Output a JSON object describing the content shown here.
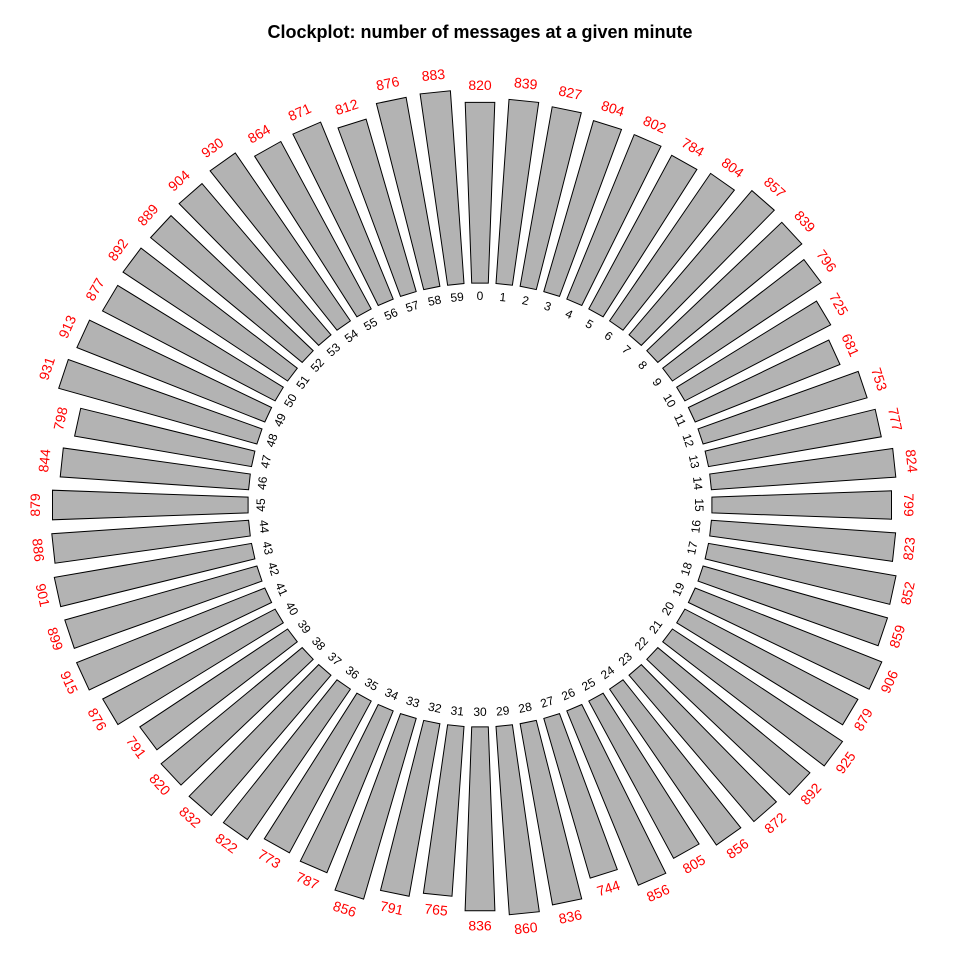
{
  "chart_data": {
    "type": "bar",
    "subtype": "clock-polar",
    "title": "Clockplot: number of messages at a given minute",
    "categories": [
      "0",
      "1",
      "2",
      "3",
      "4",
      "5",
      "6",
      "7",
      "8",
      "9",
      "10",
      "11",
      "12",
      "13",
      "14",
      "15",
      "16",
      "17",
      "18",
      "19",
      "20",
      "21",
      "22",
      "23",
      "24",
      "25",
      "26",
      "27",
      "28",
      "29",
      "30",
      "31",
      "32",
      "33",
      "34",
      "35",
      "36",
      "37",
      "38",
      "39",
      "40",
      "41",
      "42",
      "43",
      "44",
      "45",
      "46",
      "47",
      "48",
      "49",
      "50",
      "51",
      "52",
      "53",
      "54",
      "55",
      "56",
      "57",
      "58",
      "59"
    ],
    "values": [
      820,
      839,
      827,
      804,
      802,
      784,
      804,
      857,
      839,
      796,
      725,
      681,
      753,
      777,
      824,
      799,
      823,
      852,
      859,
      906,
      879,
      925,
      892,
      872,
      856,
      805,
      856,
      744,
      836,
      860,
      836,
      765,
      791,
      856,
      787,
      773,
      822,
      832,
      820,
      791,
      876,
      915,
      899,
      901,
      886,
      879,
      844,
      798,
      931,
      913,
      877,
      892,
      889,
      904,
      930,
      864,
      871,
      812,
      876,
      883
    ],
    "labels": [
      "820",
      "839",
      "827",
      "804",
      "802",
      "784",
      "804",
      "857",
      "839",
      "796",
      "725",
      "681",
      "753",
      "777",
      "824",
      "799",
      "823",
      "852",
      "859",
      "906",
      "879",
      "925",
      "892",
      "872",
      "856",
      "805",
      "856",
      "744",
      "836",
      "860",
      "836",
      "765",
      "791",
      "856",
      "787",
      "773",
      "822",
      "832",
      "820",
      "791",
      "876",
      "915",
      "899",
      "901",
      "886",
      "879",
      "844",
      "798",
      "931",
      "913",
      "877",
      "892",
      "889",
      "904",
      "930",
      "864",
      "871",
      "812",
      "876",
      "883"
    ],
    "bar_fill": "#b3b3b3",
    "bar_stroke": "#000000",
    "value_label_color": "#ff0000",
    "grid": false,
    "legend": "none"
  }
}
